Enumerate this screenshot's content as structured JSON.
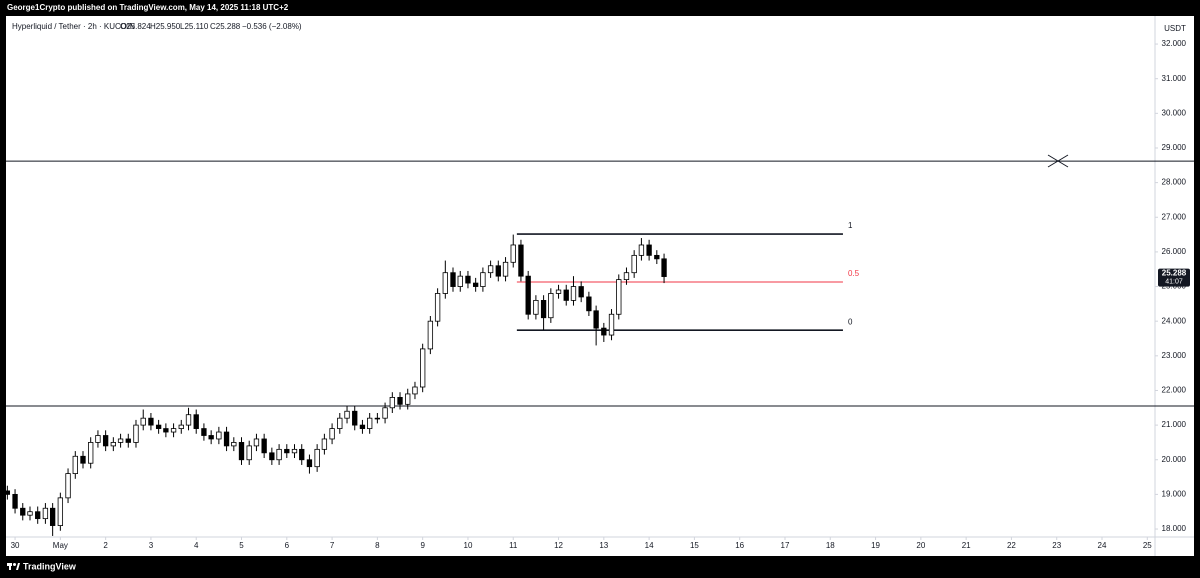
{
  "header": {
    "publisher": "George1Crypto published on TradingView.com, May 14, 2025 11:18 UTC+2",
    "brand": "TradingView"
  },
  "chart_data": {
    "type": "candlestick",
    "symbol": "Hyperliquid / Tether · 2h · KUCOIN",
    "ohlc_labels": [
      "O25.824",
      "H25.950",
      "L25.110",
      "C25.288",
      "−0.536 (−2.08%)"
    ],
    "currency": "USDT",
    "up_color": "#ffffff",
    "down_color": "#000000",
    "wick_color": "#000000",
    "x": [
      -0.17,
      0,
      0.17,
      0.33,
      0.5,
      0.67,
      0.83,
      1,
      1.17,
      1.33,
      1.5,
      1.67,
      1.83,
      2,
      2.17,
      2.33,
      2.5,
      2.67,
      2.83,
      3,
      3.17,
      3.33,
      3.5,
      3.67,
      3.83,
      4,
      4.17,
      4.33,
      4.5,
      4.67,
      4.83,
      5,
      5.17,
      5.33,
      5.5,
      5.67,
      5.83,
      6,
      6.17,
      6.33,
      6.5,
      6.67,
      6.83,
      7,
      7.17,
      7.33,
      7.5,
      7.67,
      7.83,
      8,
      8.17,
      8.33,
      8.5,
      8.67,
      8.83,
      9,
      9.17,
      9.33,
      9.5,
      9.67,
      9.83,
      10,
      10.17,
      10.33,
      10.5,
      10.67,
      10.83,
      11,
      11.17,
      11.33,
      11.5,
      11.67,
      11.83,
      12,
      12.17,
      12.33,
      12.5,
      12.67,
      12.83,
      13,
      13.17,
      13.33,
      13.5,
      13.67,
      13.83,
      14,
      14.17,
      14.33
    ],
    "open": [
      19.1,
      19.0,
      18.6,
      18.4,
      18.5,
      18.3,
      18.6,
      18.1,
      18.9,
      19.6,
      20.1,
      19.9,
      20.5,
      20.7,
      20.4,
      20.5,
      20.6,
      20.5,
      21.0,
      21.2,
      21.0,
      20.9,
      20.8,
      20.9,
      21.0,
      21.3,
      20.9,
      20.7,
      20.6,
      20.8,
      20.4,
      20.5,
      20.0,
      20.4,
      20.6,
      20.2,
      20.0,
      20.3,
      20.2,
      20.3,
      20.0,
      19.8,
      20.3,
      20.6,
      20.9,
      21.2,
      21.4,
      21.0,
      20.9,
      21.2,
      21.2,
      21.5,
      21.8,
      21.6,
      21.9,
      22.1,
      23.2,
      24.0,
      24.8,
      25.4,
      25.0,
      25.3,
      25.1,
      25.0,
      25.4,
      25.6,
      25.3,
      25.7,
      26.2,
      25.3,
      24.2,
      24.6,
      24.1,
      24.8,
      24.9,
      24.6,
      25.0,
      24.7,
      24.3,
      23.8,
      23.6,
      24.2,
      25.2,
      25.4,
      25.9,
      26.2,
      25.9,
      25.8
    ],
    "high": [
      19.25,
      19.15,
      18.75,
      18.65,
      18.65,
      18.75,
      18.75,
      19.05,
      19.75,
      20.25,
      20.25,
      20.65,
      20.85,
      20.85,
      20.65,
      20.75,
      20.75,
      21.15,
      21.45,
      21.35,
      21.15,
      21.05,
      21.05,
      21.15,
      21.5,
      21.45,
      21.05,
      20.85,
      20.95,
      20.95,
      20.65,
      20.65,
      20.55,
      20.75,
      20.75,
      20.35,
      20.45,
      20.45,
      20.45,
      20.45,
      20.15,
      20.45,
      20.75,
      21.05,
      21.35,
      21.55,
      21.55,
      21.15,
      21.35,
      21.35,
      21.65,
      21.95,
      21.95,
      22.05,
      22.25,
      23.35,
      24.15,
      24.95,
      25.75,
      25.55,
      25.45,
      25.45,
      25.25,
      25.55,
      25.75,
      25.75,
      25.85,
      26.5,
      26.35,
      25.45,
      24.75,
      24.75,
      24.95,
      25.05,
      25.05,
      25.3,
      25.15,
      24.85,
      24.45,
      23.95,
      24.35,
      25.35,
      25.55,
      26.05,
      26.4,
      26.35,
      26.05,
      25.95
    ],
    "low": [
      18.85,
      18.45,
      18.25,
      18.25,
      18.15,
      18.15,
      17.8,
      17.95,
      18.75,
      19.45,
      19.75,
      19.75,
      20.35,
      20.25,
      20.25,
      20.35,
      20.35,
      20.35,
      20.85,
      20.85,
      20.75,
      20.65,
      20.65,
      20.75,
      20.85,
      20.75,
      20.55,
      20.45,
      20.45,
      20.25,
      20.25,
      19.85,
      19.85,
      20.25,
      20.05,
      19.85,
      19.85,
      20.05,
      20.05,
      19.85,
      19.6,
      19.65,
      20.15,
      20.45,
      20.75,
      21.05,
      20.85,
      20.75,
      20.75,
      21.05,
      21.05,
      21.35,
      21.45,
      21.45,
      21.75,
      21.95,
      23.05,
      23.85,
      24.65,
      24.85,
      24.85,
      24.95,
      24.85,
      24.85,
      25.25,
      25.15,
      25.15,
      25.55,
      25.15,
      24.05,
      24.05,
      23.75,
      23.95,
      24.65,
      24.45,
      24.45,
      24.55,
      24.15,
      23.3,
      23.4,
      23.45,
      24.05,
      25.05,
      25.25,
      25.75,
      25.75,
      25.65,
      25.1
    ],
    "close": [
      19.0,
      18.6,
      18.4,
      18.5,
      18.3,
      18.6,
      18.1,
      18.9,
      19.6,
      20.1,
      19.9,
      20.5,
      20.7,
      20.4,
      20.5,
      20.6,
      20.5,
      21.0,
      21.2,
      21.0,
      20.9,
      20.8,
      20.9,
      21.0,
      21.3,
      20.9,
      20.7,
      20.6,
      20.8,
      20.4,
      20.5,
      20.0,
      20.4,
      20.6,
      20.2,
      20.0,
      20.3,
      20.2,
      20.3,
      20.0,
      19.8,
      20.3,
      20.6,
      20.9,
      21.2,
      21.4,
      21.0,
      20.9,
      21.2,
      21.2,
      21.5,
      21.8,
      21.6,
      21.9,
      22.1,
      23.2,
      24.0,
      24.8,
      25.4,
      25.0,
      25.3,
      25.1,
      25.0,
      25.4,
      25.6,
      25.3,
      25.7,
      26.2,
      25.3,
      24.2,
      24.6,
      24.1,
      24.8,
      24.9,
      24.6,
      25.0,
      24.7,
      24.3,
      23.8,
      23.6,
      24.2,
      25.2,
      25.4,
      25.9,
      26.2,
      25.9,
      25.8,
      25.288
    ],
    "xlim": [
      -0.2,
      25.17
    ],
    "xticks": [
      {
        "value": 0,
        "label": "30"
      },
      {
        "value": 1,
        "label": "May"
      },
      2,
      3,
      4,
      5,
      6,
      7,
      8,
      9,
      10,
      11,
      12,
      13,
      14,
      15,
      16,
      17,
      18,
      19,
      20,
      21,
      22,
      23,
      24,
      25
    ],
    "ylim": [
      17.77,
      32.81
    ],
    "yticks": [
      {
        "value": 18,
        "label": "18.000"
      },
      {
        "value": 19,
        "label": "19.000"
      },
      {
        "value": 20,
        "label": "20.000"
      },
      {
        "value": 21,
        "label": "21.000"
      },
      {
        "value": 22,
        "label": "22.000"
      },
      {
        "value": 23,
        "label": "23.000"
      },
      {
        "value": 24,
        "label": "24.000"
      },
      {
        "value": 25,
        "label": "25.000"
      },
      {
        "value": 26,
        "label": "26.000"
      },
      {
        "value": 27,
        "label": "27.000"
      },
      {
        "value": 28,
        "label": "28.000"
      },
      {
        "value": 29,
        "label": "29.000"
      },
      {
        "value": 30,
        "label": "30.000"
      },
      {
        "value": 31,
        "label": "31.000"
      },
      {
        "value": 32,
        "label": "32.000"
      }
    ],
    "grid": false,
    "last_price": {
      "value": 25.288,
      "label": "25.288"
    },
    "countdown": "41:07",
    "hlines": [
      {
        "value": 28.62,
        "color": "#131722"
      },
      {
        "value": 21.55,
        "color": "#131722"
      }
    ],
    "fib": {
      "x_start": 11.08,
      "x_end": 18.28,
      "levels": [
        {
          "label": "1",
          "value": 26.515,
          "color": "#131722"
        },
        {
          "label": "0.5",
          "value": 25.13,
          "color": "#f23645"
        },
        {
          "label": "0",
          "value": 23.74,
          "color": "#131722"
        }
      ]
    }
  }
}
